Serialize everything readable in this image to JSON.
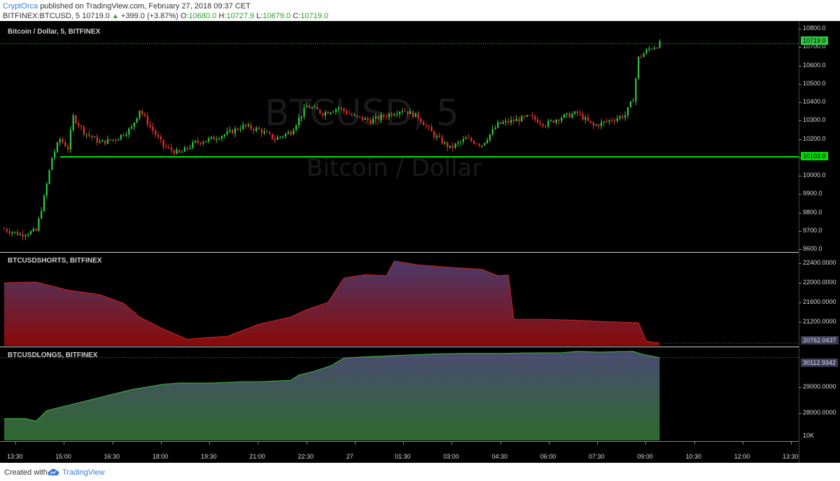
{
  "header": {
    "author": "CryptOrca",
    "published_text": "published on TradingView.com, February 27, 2018 09:37 CET",
    "symbol": "BITFINEX:BTCUSD, 5",
    "last": "10719.0",
    "change": "+399.0 (+3.87%)",
    "o_label": "O:",
    "o_val": "10680.0",
    "h_label": "H:",
    "h_val": "10727.9",
    "l_label": "L:",
    "l_val": "10679.0",
    "c_label": "C:",
    "c_val": "10719.0"
  },
  "main_pane": {
    "title": "Bitcoin / Dollar, 5, BITFINEX",
    "watermark_symbol": "BTCUSD, 5",
    "watermark_name": "Bitcoin / Dollar",
    "price_ticks": [
      "10800.0",
      "10700.0",
      "10600.0",
      "10500.0",
      "10400.0",
      "10300.0",
      "10200.0",
      "10100.0",
      "10000.0",
      "9900.0",
      "9800.0",
      "9700.0",
      "9600.0"
    ],
    "last_price_tag": "10719.0",
    "hline_price": 10103.0,
    "hline_tag": "10103.0"
  },
  "shorts_pane": {
    "title": "BTCUSDSHORTS, BITFINEX",
    "ticks": [
      "22400.0000",
      "22000.0000",
      "21600.0000",
      "21200.0000"
    ],
    "last_tag": "20762.0437"
  },
  "longs_pane": {
    "title": "BTCUSDLONGS, BITFINEX",
    "ticks": [
      "29000.0000",
      "28000.0000"
    ],
    "last_tag": "30112.9342",
    "extra_tick": "10K"
  },
  "time_axis": [
    "13:30",
    "15:00",
    "16:30",
    "18:00",
    "19:30",
    "21:00",
    "22:30",
    "27",
    "01:30",
    "03:00",
    "04:30",
    "06:00",
    "07:30",
    "09:00",
    "10:30",
    "12:00",
    "13:30"
  ],
  "footer": {
    "created_with": "Created with",
    "brand": "TradingView"
  },
  "colors": {
    "up": "#2ecc40",
    "down": "#e0342a",
    "hline": "#00e000",
    "shorts_fill_top": "#4a3a6a",
    "shorts_fill_bottom": "#8a0a0a",
    "shorts_line": "#c0201a",
    "longs_fill_top": "#4a4a70",
    "longs_fill_bottom": "#2e6a2e",
    "longs_line": "#3aa83a"
  },
  "chart_data": [
    {
      "type": "candlestick",
      "title": "Bitcoin / Dollar, 5, BITFINEX",
      "ylim": [
        9600,
        10800
      ],
      "x_start": "13:00",
      "x_end": "09:45",
      "interval": "5m",
      "close_path": [
        [
          "13:00",
          9710
        ],
        [
          "13:30",
          9680
        ],
        [
          "14:00",
          9700
        ],
        [
          "14:15",
          9880
        ],
        [
          "14:30",
          10100
        ],
        [
          "14:45",
          10200
        ],
        [
          "15:00",
          10150
        ],
        [
          "15:10",
          10320
        ],
        [
          "15:30",
          10240
        ],
        [
          "16:00",
          10180
        ],
        [
          "16:30",
          10200
        ],
        [
          "17:00",
          10260
        ],
        [
          "17:15",
          10360
        ],
        [
          "17:30",
          10290
        ],
        [
          "18:00",
          10160
        ],
        [
          "18:30",
          10120
        ],
        [
          "19:00",
          10180
        ],
        [
          "19:30",
          10200
        ],
        [
          "20:00",
          10230
        ],
        [
          "20:30",
          10270
        ],
        [
          "21:00",
          10250
        ],
        [
          "21:30",
          10200
        ],
        [
          "22:00",
          10240
        ],
        [
          "22:15",
          10310
        ],
        [
          "22:30",
          10380
        ],
        [
          "23:00",
          10340
        ],
        [
          "23:30",
          10370
        ],
        [
          "00:00",
          10320
        ],
        [
          "00:30",
          10300
        ],
        [
          "01:00",
          10330
        ],
        [
          "01:30",
          10360
        ],
        [
          "02:00",
          10320
        ],
        [
          "02:30",
          10220
        ],
        [
          "03:00",
          10150
        ],
        [
          "03:30",
          10200
        ],
        [
          "04:00",
          10170
        ],
        [
          "04:30",
          10280
        ],
        [
          "05:00",
          10300
        ],
        [
          "05:30",
          10320
        ],
        [
          "06:00",
          10280
        ],
        [
          "06:30",
          10320
        ],
        [
          "07:00",
          10340
        ],
        [
          "07:30",
          10270
        ],
        [
          "08:00",
          10300
        ],
        [
          "08:30",
          10330
        ],
        [
          "08:45",
          10420
        ],
        [
          "08:55",
          10640
        ],
        [
          "09:15",
          10690
        ],
        [
          "09:30",
          10710
        ],
        [
          "09:35",
          10719
        ]
      ]
    },
    {
      "type": "area",
      "title": "BTCUSDSHORTS, BITFINEX",
      "ylim": [
        20720,
        22520
      ],
      "values": [
        [
          "13:00",
          22000
        ],
        [
          "14:00",
          22020
        ],
        [
          "15:00",
          21850
        ],
        [
          "16:00",
          21760
        ],
        [
          "16:45",
          21580
        ],
        [
          "17:15",
          21300
        ],
        [
          "18:00",
          21050
        ],
        [
          "18:45",
          20840
        ],
        [
          "19:15",
          20870
        ],
        [
          "20:00",
          20900
        ],
        [
          "21:00",
          21150
        ],
        [
          "22:00",
          21300
        ],
        [
          "22:30",
          21450
        ],
        [
          "23:10",
          21600
        ],
        [
          "23:40",
          22100
        ],
        [
          "00:20",
          22170
        ],
        [
          "01:00",
          22150
        ],
        [
          "01:15",
          22450
        ],
        [
          "02:00",
          22370
        ],
        [
          "03:00",
          22320
        ],
        [
          "04:00",
          22280
        ],
        [
          "04:30",
          22150
        ],
        [
          "04:50",
          22160
        ],
        [
          "05:00",
          21250
        ],
        [
          "06:00",
          21250
        ],
        [
          "07:00",
          21230
        ],
        [
          "08:00",
          21200
        ],
        [
          "08:55",
          21180
        ],
        [
          "09:10",
          20800
        ],
        [
          "09:35",
          20762
        ]
      ]
    },
    {
      "type": "area",
      "title": "BTCUSDLONGS, BITFINEX",
      "ylim": [
        27000,
        30400
      ],
      "values": [
        [
          "13:00",
          27800
        ],
        [
          "13:40",
          27800
        ],
        [
          "14:00",
          27700
        ],
        [
          "14:20",
          28100
        ],
        [
          "15:00",
          28300
        ],
        [
          "16:00",
          28600
        ],
        [
          "17:00",
          28900
        ],
        [
          "18:00",
          29100
        ],
        [
          "18:30",
          29150
        ],
        [
          "19:30",
          29150
        ],
        [
          "20:30",
          29200
        ],
        [
          "21:00",
          29200
        ],
        [
          "22:00",
          29250
        ],
        [
          "22:15",
          29450
        ],
        [
          "22:45",
          29600
        ],
        [
          "23:15",
          29800
        ],
        [
          "23:40",
          30100
        ],
        [
          "00:30",
          30150
        ],
        [
          "01:30",
          30200
        ],
        [
          "02:30",
          30250
        ],
        [
          "03:30",
          30270
        ],
        [
          "04:30",
          30270
        ],
        [
          "05:30",
          30290
        ],
        [
          "06:30",
          30300
        ],
        [
          "07:00",
          30350
        ],
        [
          "07:40",
          30320
        ],
        [
          "08:15",
          30340
        ],
        [
          "08:45",
          30350
        ],
        [
          "09:00",
          30250
        ],
        [
          "09:35",
          30113
        ]
      ]
    }
  ]
}
